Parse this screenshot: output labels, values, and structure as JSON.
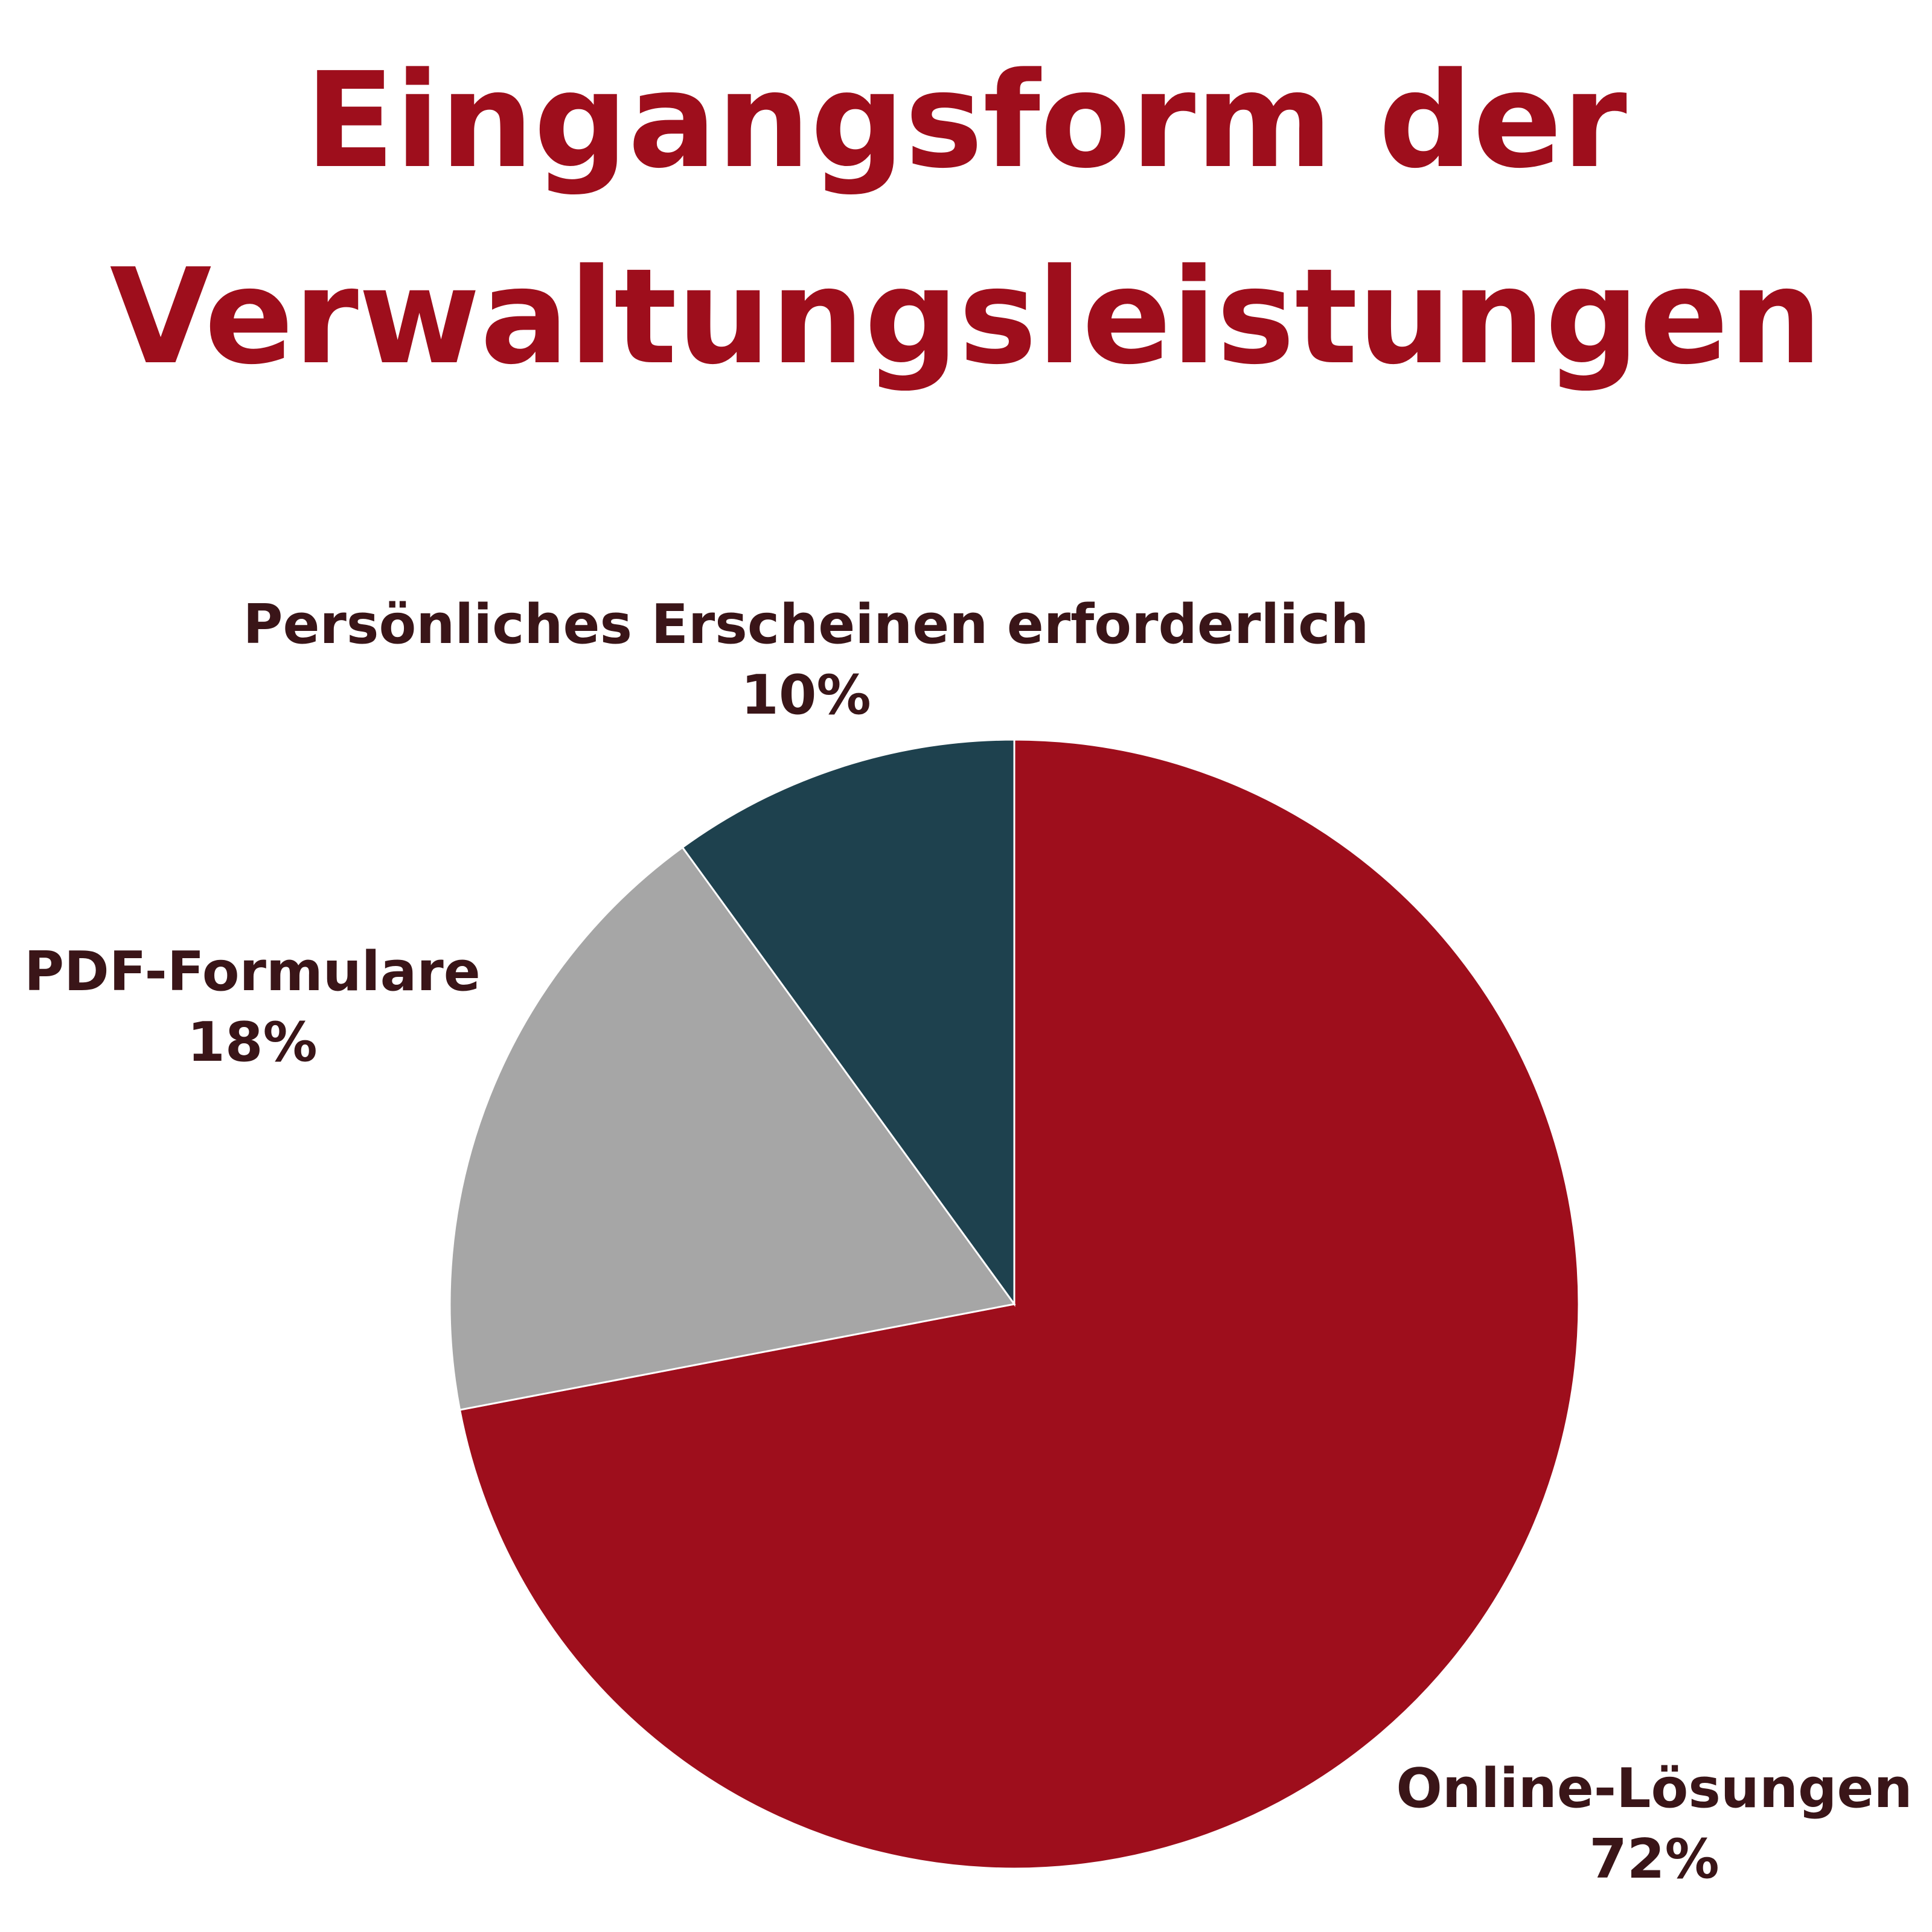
{
  "chart_data": {
    "type": "pie",
    "title": [
      "Eingangsform der",
      "Verwaltungsleistungen"
    ],
    "slices": [
      {
        "name": "Online-Lösungen",
        "value": 72,
        "label": "72%",
        "color": "#9e0e1c"
      },
      {
        "name": "PDF-Formulare",
        "value": 18,
        "label": "18%",
        "color": "#a6a6a6"
      },
      {
        "name": "Persönliches Erscheinen erforderlich",
        "value": 10,
        "label": "10%",
        "color": "#1e414e"
      }
    ],
    "start": "12 o'clock",
    "direction": "clockwise",
    "legend": "none",
    "data_labels": "outside, category name and percentage"
  }
}
